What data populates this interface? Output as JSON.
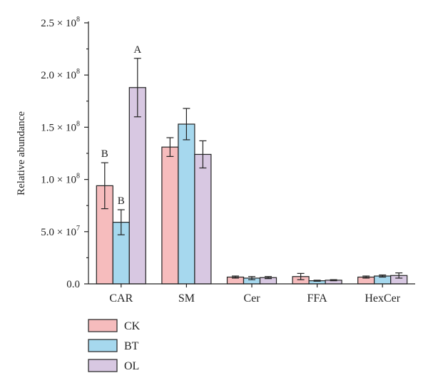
{
  "chart_data": {
    "type": "bar",
    "ylabel": "Relative abundance",
    "categories": [
      "CAR",
      "SM",
      "Cer",
      "FFA",
      "HexCer"
    ],
    "ylim": [
      0,
      250000000
    ],
    "yticks": [
      {
        "value": 0,
        "label": "0.0"
      },
      {
        "value": 50000000,
        "label": "5.0 × 10",
        "exp": "7"
      },
      {
        "value": 100000000,
        "label": "1.0 × 10",
        "exp": "8"
      },
      {
        "value": 150000000,
        "label": "1.5 × 10",
        "exp": "8"
      },
      {
        "value": 200000000,
        "label": "2.0 × 10",
        "exp": "8"
      },
      {
        "value": 250000000,
        "label": "2.5 × 10",
        "exp": "8"
      }
    ],
    "series": [
      {
        "name": "CK",
        "color": "#f6bcbd",
        "values": [
          94000000,
          131000000,
          6500000,
          7000000,
          6500000
        ],
        "errors": [
          22000000,
          9000000,
          1000000,
          3000000,
          1000000
        ]
      },
      {
        "name": "BT",
        "color": "#a6d8ee",
        "values": [
          59000000,
          153000000,
          5500000,
          3000000,
          7500000
        ],
        "errors": [
          12000000,
          15000000,
          1500000,
          500000,
          1000000
        ]
      },
      {
        "name": "OL",
        "color": "#d8c8e2",
        "values": [
          188000000,
          124000000,
          6000000,
          3500000,
          8000000
        ],
        "errors": [
          28000000,
          13000000,
          1000000,
          500000,
          2500000
        ]
      }
    ],
    "annotations": [
      {
        "category": 0,
        "series": 0,
        "text": "B"
      },
      {
        "category": 0,
        "series": 1,
        "text": "B"
      },
      {
        "category": 0,
        "series": 2,
        "text": "A"
      }
    ],
    "legend_position": "bottom-left",
    "grid": false
  }
}
